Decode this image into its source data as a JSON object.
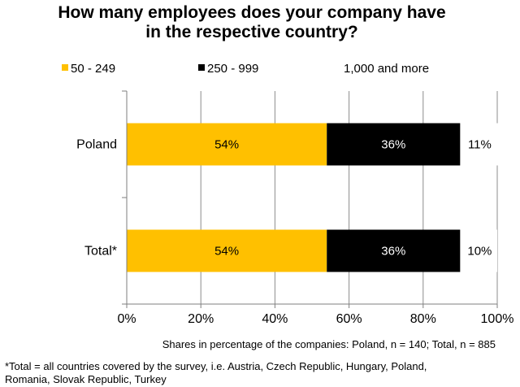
{
  "title": {
    "line1": "How many employees  does your company  have",
    "line2": "in the respective country?"
  },
  "chart_data": {
    "type": "bar",
    "orientation": "horizontal",
    "stacked": true,
    "categories": [
      "Poland",
      "Total*"
    ],
    "series": [
      {
        "name": "50 - 249",
        "values": [
          54,
          54
        ],
        "labels": [
          "54%",
          "54%"
        ],
        "color": "#FFC000",
        "label_color": "#000000"
      },
      {
        "name": "250 - 999",
        "values": [
          36,
          36
        ],
        "labels": [
          "36%",
          "36%"
        ],
        "color": "#000000",
        "label_color": "#FFFFFF"
      },
      {
        "name": "1,000 and more",
        "values": [
          11,
          10
        ],
        "labels": [
          "11%",
          "10%"
        ],
        "color": "#FFFFFF",
        "label_color": "#000000"
      }
    ],
    "xlim": [
      0,
      100
    ],
    "x_ticks": [
      "0%",
      "20%",
      "40%",
      "60%",
      "80%",
      "100%"
    ],
    "grid": true,
    "legend_position": "top"
  },
  "notes": {
    "shares": "Shares in percentage of the companies: Poland,  n = 140; Total,  n = 885",
    "footnote_line1": "*Total = all countries covered by the survey,  i.e. Austria,  Czech Republic,  Hungary,  Poland,",
    "footnote_line2": "Romania,  Slovak Republic,  Turkey"
  }
}
